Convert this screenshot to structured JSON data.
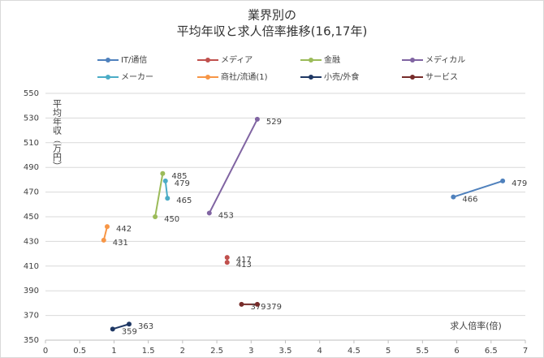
{
  "chart_data": {
    "type": "scatter",
    "title": [
      "業界別の",
      "平均年収と求人倍率推移(16,17年)"
    ],
    "x_label": "求人倍率(倍)",
    "y_label": "平均年収（万円）",
    "xlim": [
      0,
      7
    ],
    "xticks": [
      0,
      0.5,
      1,
      1.5,
      2,
      2.5,
      3,
      3.5,
      4,
      4.5,
      5,
      5.5,
      6,
      6.5,
      7
    ],
    "ylim": [
      350,
      550
    ],
    "yticks": [
      350,
      370,
      390,
      410,
      430,
      450,
      470,
      490,
      510,
      530,
      550
    ],
    "grid": true,
    "legend": "top",
    "series": [
      {
        "name": "IT/通信",
        "color": "#4f81bd",
        "x": [
          5.95,
          6.67
        ],
        "values": [
          466,
          479
        ]
      },
      {
        "name": "メディア",
        "color": "#c0504d",
        "x": [
          2.65,
          2.65
        ],
        "values": [
          417,
          413
        ]
      },
      {
        "name": "金融",
        "color": "#9bbb59",
        "x": [
          1.6,
          1.71
        ],
        "values": [
          450,
          485
        ]
      },
      {
        "name": "メディカル",
        "color": "#8064a2",
        "x": [
          2.39,
          3.09
        ],
        "values": [
          453,
          529
        ]
      },
      {
        "name": "メーカー",
        "color": "#4bacc6",
        "x": [
          1.75,
          1.78
        ],
        "values": [
          479,
          465
        ]
      },
      {
        "name": "商社/流通(1)",
        "color": "#f79646",
        "x": [
          0.85,
          0.9
        ],
        "values": [
          431,
          442
        ]
      },
      {
        "name": "小売/外食",
        "color": "#1f3864",
        "x": [
          0.98,
          1.22
        ],
        "values": [
          359,
          363
        ]
      },
      {
        "name": "サービス",
        "color": "#772c2a",
        "x": [
          2.86,
          3.09
        ],
        "values": [
          379,
          379
        ]
      }
    ]
  }
}
